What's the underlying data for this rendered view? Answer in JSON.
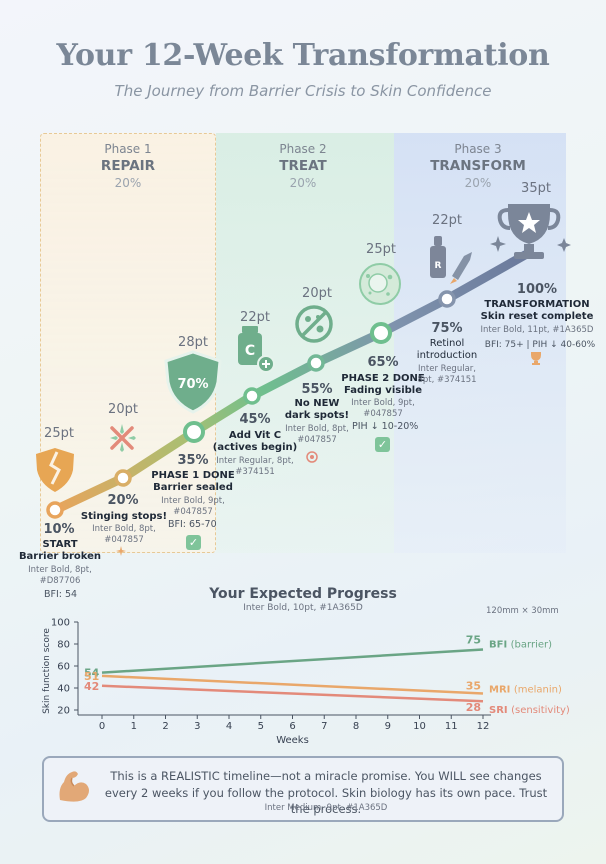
{
  "header": {
    "title": "Your 12-Week Transformation",
    "subtitle": "The Journey from Barrier Crisis to Skin Confidence"
  },
  "phases": [
    {
      "num": "Phase 1",
      "name": "REPAIR",
      "pct": "20%"
    },
    {
      "num": "Phase 2",
      "name": "TREAT",
      "pct": "20%"
    },
    {
      "num": "Phase 3",
      "name": "TRANSFORM",
      "pct": "20%"
    }
  ],
  "colors": {
    "path_start": "#e8a45c",
    "path_mid": "#6fbf8e",
    "path_end": "#6b7a9c",
    "bfi": "#6aa585",
    "mri": "#e9a76a",
    "sri": "#e38a7a"
  },
  "milestones": [
    {
      "pt": "25pt",
      "pct": "10%",
      "text": "START\nBarrier broken",
      "spec": "Inter Bold, 8pt,\n#D87706",
      "metric": "BFI: 54",
      "icon": "broken-heart-shield-icon"
    },
    {
      "pt": "20pt",
      "pct": "20%",
      "text": "Stinging stops!",
      "spec": "Inter Bold, 8pt,\n#047857",
      "icon": "crossed-out-sting-icon"
    },
    {
      "pt": "28pt",
      "pct": "35%",
      "text": "PHASE 1 DONE\nBarrier sealed",
      "spec": "Inter Bold, 9pt,\n#047857",
      "metric": "BFI: 65-70",
      "badge": "70%",
      "icon": "shield-icon"
    },
    {
      "pt": "22pt",
      "pct": "45%",
      "text": "Add Vit C\n(actives begin)",
      "spec": "Inter Regular, 8pt,\n#374151",
      "icon": "vitamin-c-bottle-icon"
    },
    {
      "pt": "20pt",
      "pct": "55%",
      "text": "No NEW\ndark spots!",
      "spec": "Inter Bold, 8pt,\n#047857",
      "icon": "no-spots-icon"
    },
    {
      "pt": "25pt",
      "pct": "65%",
      "text": "PHASE 2 DONE\nFading visible",
      "spec": "Inter Bold, 9pt,\n#047857",
      "metric": "PIH ↓ 10-20%",
      "icon": "skin-cell-icon"
    },
    {
      "pt": "22pt",
      "pct": "75%",
      "text": "Retinol\nintroduction",
      "spec": "Inter Regular,\n8pt, #374151",
      "icon": "retinol-dropper-icon"
    },
    {
      "pt": "35pt",
      "pct": "100%",
      "text": "TRANSFORMATION\nSkin reset complete",
      "spec": "Inter Bold, 11pt, #1A365D",
      "metric": "BFI: 75+ | PIH ↓ 40-60%",
      "icon": "trophy-icon"
    }
  ],
  "progress": {
    "title": "Your Expected Progress",
    "spec": "Inter Bold, 10pt, #1A365D",
    "size_note": "120mm × 30mm"
  },
  "chart_data": {
    "type": "line",
    "title": "Your Expected Progress",
    "xlabel": "Weeks",
    "ylabel": "Skin function score",
    "x": [
      0,
      12
    ],
    "xticks": [
      0,
      1,
      2,
      3,
      4,
      5,
      6,
      7,
      8,
      9,
      10,
      11,
      12
    ],
    "yticks": [
      20,
      40,
      60,
      80,
      100
    ],
    "ylim": [
      20,
      100
    ],
    "xlim": [
      0,
      12
    ],
    "series": [
      {
        "name": "BFI",
        "label": "(barrier)",
        "values": [
          54,
          75
        ],
        "start_label": "54",
        "end_label": "75"
      },
      {
        "name": "MRI",
        "label": "(melanin)",
        "values": [
          51,
          35
        ],
        "start_label": "51",
        "end_label": "35"
      },
      {
        "name": "SRI",
        "label": "(sensitivity)",
        "values": [
          42,
          28
        ],
        "start_label": "42",
        "end_label": "28"
      }
    ]
  },
  "footer_note": {
    "text": "This is a REALISTIC timeline—not a miracle promise. You WILL see changes every 2 weeks if you follow the protocol. Skin biology has its own pace. Trust the process.",
    "spec": "Inter Medium, 9pt, #1A365D",
    "icon": "flexed-arm-icon"
  }
}
